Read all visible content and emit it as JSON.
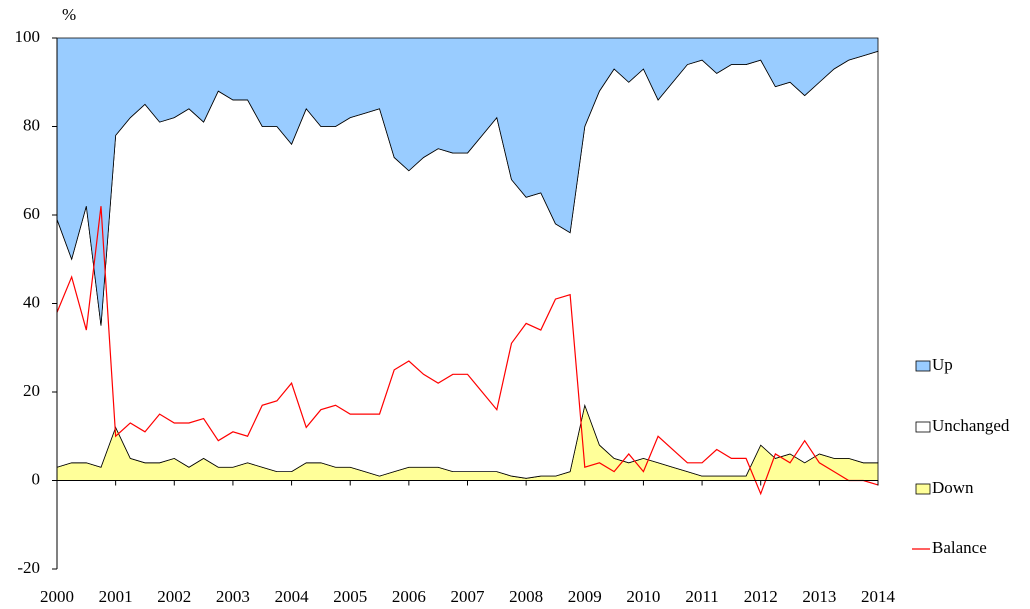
{
  "chart_data": {
    "type": "area",
    "stacked": true,
    "ylabel": "%",
    "x": [
      2000,
      2000.25,
      2000.5,
      2000.75,
      2001,
      2001.25,
      2001.5,
      2001.75,
      2002,
      2002.25,
      2002.5,
      2002.75,
      2003,
      2003.25,
      2003.5,
      2003.75,
      2004,
      2004.25,
      2004.5,
      2004.75,
      2005,
      2005.25,
      2005.5,
      2005.75,
      2006,
      2006.25,
      2006.5,
      2006.75,
      2007,
      2007.25,
      2007.5,
      2007.75,
      2008,
      2008.25,
      2008.5,
      2008.75,
      2009,
      2009.25,
      2009.5,
      2009.75,
      2010,
      2010.25,
      2010.5,
      2010.75,
      2011,
      2011.25,
      2011.5,
      2011.75,
      2012,
      2012.25,
      2012.5,
      2012.75,
      2013,
      2013.25,
      2013.5,
      2013.75,
      2014
    ],
    "xlim": [
      2000,
      2014
    ],
    "xticks": [
      2000,
      2001,
      2002,
      2003,
      2004,
      2005,
      2006,
      2007,
      2008,
      2009,
      2010,
      2011,
      2012,
      2013,
      2014
    ],
    "ylim": [
      -20,
      100
    ],
    "yticks": [
      -20,
      0,
      20,
      40,
      60,
      80,
      100
    ],
    "series": [
      {
        "name": "Up",
        "color": "#99ccff",
        "values": [
          41,
          50,
          38,
          65,
          22,
          18,
          15,
          19,
          18,
          16,
          19,
          12,
          14,
          14,
          20,
          20,
          24,
          16,
          20,
          20,
          18,
          17,
          16,
          27,
          30,
          27,
          25,
          26,
          26,
          22,
          18,
          32,
          36,
          35,
          42,
          44,
          20,
          12,
          7,
          10,
          7,
          14,
          10,
          6,
          5,
          8,
          6,
          6,
          5,
          11,
          10,
          13,
          10,
          7,
          5,
          4,
          3
        ]
      },
      {
        "name": "Unchanged",
        "color": "#ffffff",
        "values": [
          56,
          46,
          58,
          32,
          66,
          77,
          81,
          77,
          77,
          81,
          76,
          85,
          83,
          82,
          77,
          78,
          74,
          80,
          76,
          77,
          79,
          81,
          83,
          71,
          67,
          70,
          72,
          72,
          72,
          76,
          80,
          67,
          63.5,
          64,
          57,
          54,
          63,
          80,
          88,
          86,
          88,
          82,
          87,
          92,
          94,
          91,
          93,
          93,
          87,
          84,
          84,
          83,
          84,
          88,
          90,
          92,
          93
        ]
      },
      {
        "name": "Down",
        "color": "#ffff99",
        "values": [
          3,
          4,
          4,
          3,
          12,
          5,
          4,
          4,
          5,
          3,
          5,
          3,
          3,
          4,
          3,
          2,
          2,
          4,
          4,
          3,
          3,
          2,
          1,
          2,
          3,
          3,
          3,
          2,
          2,
          2,
          2,
          1,
          0.5,
          1,
          1,
          2,
          17,
          8,
          5,
          4,
          5,
          4,
          3,
          2,
          1,
          1,
          1,
          1,
          8,
          5,
          6,
          4,
          6,
          5,
          5,
          4,
          4
        ]
      },
      {
        "name": "Balance",
        "type": "line",
        "color": "#ff0000",
        "values": [
          38,
          46,
          34,
          62,
          10,
          13,
          11,
          15,
          13,
          13,
          14,
          9,
          11,
          10,
          17,
          18,
          22,
          12,
          16,
          17,
          15,
          15,
          15,
          25,
          27,
          24,
          22,
          24,
          24,
          20,
          16,
          31,
          35.5,
          34,
          41,
          42,
          3,
          4,
          2,
          6,
          2,
          10,
          7,
          4,
          4,
          7,
          5,
          5,
          -3,
          6,
          4,
          9,
          4,
          2,
          0,
          0,
          -1
        ]
      }
    ]
  }
}
